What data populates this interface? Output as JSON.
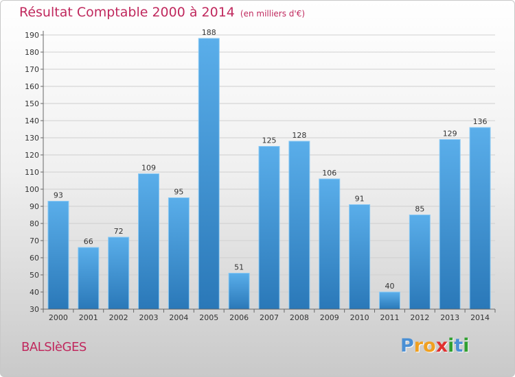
{
  "header": {
    "title": "Résultat Comptable 2000 à 2014",
    "subtitle": "(en milliers d'€)"
  },
  "footer": {
    "commune": "BALSIèGES",
    "logo": {
      "letters": [
        "P",
        "r",
        "o",
        "x",
        "i",
        "t",
        "i"
      ],
      "colors": [
        "#4a8fd4",
        "#f0a020",
        "#f0a020",
        "#e03030",
        "#30a030",
        "#4a8fd4",
        "#30a030"
      ]
    }
  },
  "chart_data": {
    "type": "bar",
    "title": "Résultat Comptable 2000 à 2014",
    "subtitle": "(en milliers d'€)",
    "categories": [
      "2000",
      "2001",
      "2002",
      "2003",
      "2004",
      "2005",
      "2006",
      "2007",
      "2008",
      "2009",
      "2010",
      "2011",
      "2012",
      "2013",
      "2014"
    ],
    "values": [
      93,
      66,
      72,
      109,
      95,
      188,
      51,
      125,
      128,
      106,
      91,
      40,
      85,
      129,
      136
    ],
    "ylim": [
      30,
      190
    ],
    "yticks": [
      30,
      40,
      50,
      60,
      70,
      80,
      90,
      100,
      110,
      120,
      130,
      140,
      150,
      160,
      170,
      180,
      190
    ],
    "grid": true,
    "bar_color_top": "#5aaeea",
    "bar_color_bottom": "#2a78b8"
  }
}
